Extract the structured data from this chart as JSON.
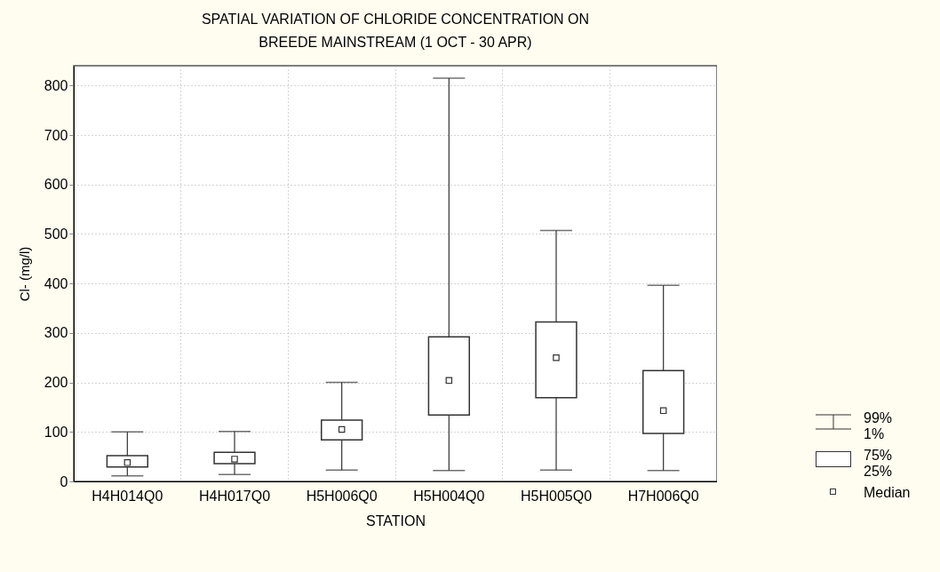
{
  "chart_data": {
    "type": "box",
    "title": "SPATIAL VARIATION OF CHLORIDE CONCENTRATION ON BREEDE MAINSTREAM (1 OCT - 30 APR)",
    "xlabel": "STATION",
    "ylabel": "Cl- (mg/l)",
    "categories": [
      "H4H014Q0",
      "H4H017Q0",
      "H5H006Q0",
      "H5H004Q0",
      "H5H005Q0",
      "H7H006Q0"
    ],
    "boxes": [
      {
        "low": 11,
        "q1": 29,
        "median": 38,
        "q3": 52,
        "high": 100
      },
      {
        "low": 14,
        "q1": 36,
        "median": 45,
        "q3": 59,
        "high": 101
      },
      {
        "low": 23,
        "q1": 84,
        "median": 105,
        "q3": 124,
        "high": 200
      },
      {
        "low": 22,
        "q1": 134,
        "median": 204,
        "q3": 292,
        "high": 815
      },
      {
        "low": 23,
        "q1": 169,
        "median": 250,
        "q3": 322,
        "high": 507
      },
      {
        "low": 22,
        "q1": 97,
        "median": 143,
        "q3": 224,
        "high": 396
      }
    ],
    "color": "#333333",
    "ylim": [
      0,
      840
    ],
    "yticks": [
      0,
      100,
      200,
      300,
      400,
      500,
      600,
      700,
      800
    ],
    "grid": true,
    "marker": "square",
    "annotations": [
      "99%",
      "1%",
      "75%",
      "25%",
      "Median"
    ]
  }
}
